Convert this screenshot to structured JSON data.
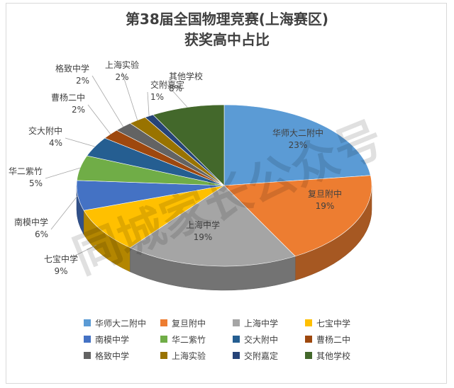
{
  "chart_data": {
    "type": "pie",
    "title": "第38届全国物理竞赛(上海赛区)",
    "subtitle": "获奖高中占比",
    "watermark": "同城家长公众号",
    "legend_position": "bottom",
    "slices": [
      {
        "name": "华师大二附中",
        "value": 23,
        "label": "23%",
        "color": "#5b9bd5"
      },
      {
        "name": "复旦附中",
        "value": 19,
        "label": "19%",
        "color": "#ed7d31"
      },
      {
        "name": "上海中学",
        "value": 19,
        "label": "19%",
        "color": "#a5a5a5"
      },
      {
        "name": "七宝中学",
        "value": 9,
        "label": "9%",
        "color": "#ffc000"
      },
      {
        "name": "南模中学",
        "value": 6,
        "label": "6%",
        "color": "#4472c4"
      },
      {
        "name": "华二紫竹",
        "value": 5,
        "label": "5%",
        "color": "#70ad47"
      },
      {
        "name": "交大附中",
        "value": 4,
        "label": "4%",
        "color": "#255e91"
      },
      {
        "name": "曹杨二中",
        "value": 2,
        "label": "2%",
        "color": "#9e480e"
      },
      {
        "name": "格致中学",
        "value": 2,
        "label": "2%",
        "color": "#636363"
      },
      {
        "name": "上海实验",
        "value": 2,
        "label": "2%",
        "color": "#997300"
      },
      {
        "name": "交附嘉定",
        "value": 1,
        "label": "1%",
        "color": "#264478"
      },
      {
        "name": "其他学校",
        "value": 8,
        "label": "8%",
        "color": "#43682b"
      }
    ]
  }
}
